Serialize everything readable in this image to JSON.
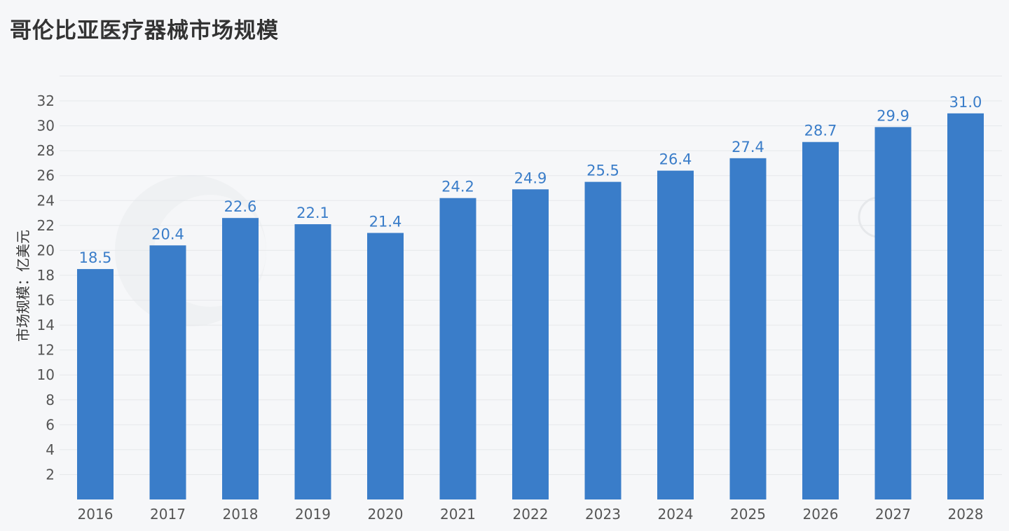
{
  "colors": {
    "bar": "#3a7dc9",
    "label": "#3a7dc9",
    "grid": "#e6e8eb",
    "background": "#f6f7f9"
  },
  "chart_data": {
    "type": "bar",
    "title": "哥伦比亚医疗器械市场规模",
    "xlabel": "",
    "ylabel": "市场规模：亿美元",
    "categories": [
      "2016",
      "2017",
      "2018",
      "2019",
      "2020",
      "2021",
      "2022",
      "2023",
      "2024",
      "2025",
      "2026",
      "2027",
      "2028"
    ],
    "values": [
      18.5,
      20.4,
      22.6,
      22.1,
      21.4,
      24.2,
      24.9,
      25.5,
      26.4,
      27.4,
      28.7,
      29.9,
      31.0
    ],
    "value_labels": [
      "18.5",
      "20.4",
      "22.6",
      "22.1",
      "21.4",
      "24.2",
      "24.9",
      "25.5",
      "26.4",
      "27.4",
      "28.7",
      "29.9",
      "31.0"
    ],
    "ylim": [
      0,
      34
    ],
    "yticks": [
      2,
      4,
      6,
      8,
      10,
      12,
      14,
      16,
      18,
      20,
      22,
      24,
      26,
      28,
      30,
      32
    ],
    "grid": true,
    "legend": "none"
  }
}
